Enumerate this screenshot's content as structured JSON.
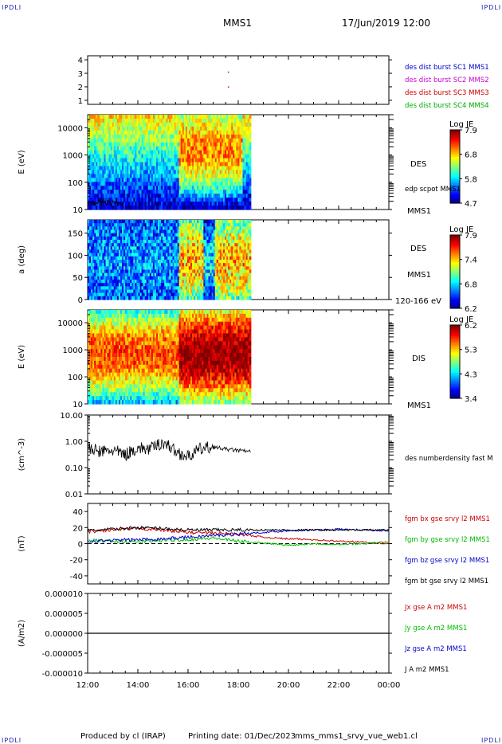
{
  "header": {
    "corner_label": "IPDLI",
    "spacecraft": "MMS1",
    "datetime": "17/Jun/2019 12:00"
  },
  "footer": {
    "produced_by": "Produced by cl (IRAP)",
    "printing_date": "Printing date: 01/Dec/2023",
    "filename": "mms_mms1_srvy_vue_web1.cl"
  },
  "time_axis": {
    "ticks": [
      "12:00",
      "14:00",
      "16:00",
      "18:00",
      "20:00",
      "22:00",
      "00:00"
    ],
    "range_hours": [
      12,
      24
    ]
  },
  "chart_data": [
    {
      "id": "burst",
      "type": "scatter",
      "ylim": [
        0.7,
        4.3
      ],
      "yticks": [
        "1",
        "2",
        "3",
        "4"
      ],
      "legend": [
        {
          "label": "des dist burst SC1 MMS1",
          "color": "#0000cc"
        },
        {
          "label": "des dist burst SC2 MMS2",
          "color": "#cc00cc"
        },
        {
          "label": "des dist burst SC3 MMS3",
          "color": "#cc0000"
        },
        {
          "label": "des dist burst SC4 MMS4",
          "color": "#00aa00"
        }
      ],
      "points": [
        {
          "x": 17.6,
          "y": 3.1,
          "series": 2
        },
        {
          "x": 17.6,
          "y": 2.0,
          "series": 2
        }
      ]
    },
    {
      "id": "des_energy",
      "type": "heatmap",
      "ylabel": "E (eV)",
      "scale": "log",
      "ylim": [
        10,
        30000
      ],
      "yticks": [
        "10",
        "100",
        "1000",
        "10000"
      ],
      "data_end_hour": 18.5,
      "right_labels": [
        "DES",
        "MMS1"
      ],
      "overlay_label": "edp scpot MMS1",
      "colorbar": {
        "title": "Log JE",
        "ticks": [
          "7.9",
          "6.8",
          "5.8",
          "4.7"
        ]
      }
    },
    {
      "id": "des_pitch",
      "type": "heatmap",
      "ylabel": "a (deg)",
      "ylim": [
        0,
        180
      ],
      "yticks": [
        "0",
        "50",
        "100",
        "150"
      ],
      "data_end_hour": 18.5,
      "right_labels": [
        "DES",
        "MMS1",
        "120-166 eV"
      ],
      "colorbar": {
        "title": "Log JE",
        "ticks": [
          "7.9",
          "7.4",
          "6.8",
          "6.2"
        ]
      }
    },
    {
      "id": "dis_energy",
      "type": "heatmap",
      "ylabel": "E (eV)",
      "scale": "log",
      "ylim": [
        10,
        30000
      ],
      "yticks": [
        "10",
        "100",
        "1000",
        "10000"
      ],
      "data_end_hour": 18.5,
      "right_labels": [
        "DIS",
        "MMS1"
      ],
      "colorbar": {
        "title": "Log JE",
        "ticks": [
          "6.2",
          "5.3",
          "4.3",
          "3.4"
        ]
      }
    },
    {
      "id": "density",
      "type": "line",
      "ylabel": "(cm^-3)",
      "scale": "log",
      "ylim": [
        0.01,
        10
      ],
      "yticks": [
        "0.01",
        "0.10",
        "1.00",
        "10.00"
      ],
      "legend": [
        {
          "label": "des numberdensity fast M",
          "color": "#000000"
        }
      ],
      "x": [
        12.0,
        12.5,
        13.0,
        13.5,
        14.0,
        14.5,
        15.0,
        15.5,
        16.0,
        16.5,
        17.0,
        17.5,
        18.0,
        18.5
      ],
      "values": [
        0.5,
        0.4,
        0.45,
        0.3,
        0.55,
        0.5,
        0.9,
        0.4,
        0.25,
        0.5,
        0.6,
        0.5,
        0.45,
        0.4
      ]
    },
    {
      "id": "bfield",
      "type": "line",
      "ylabel": "(nT)",
      "ylim": [
        -50,
        50
      ],
      "yticks": [
        "-40",
        "-20",
        "0",
        "20",
        "40"
      ],
      "x": [
        12,
        13,
        14,
        15,
        16,
        17,
        18,
        19,
        20,
        21,
        22,
        23,
        24
      ],
      "legend": [
        {
          "label": "fgm bx gse srvy l2 MMS1",
          "color": "#cc0000"
        },
        {
          "label": "fgm by gse srvy l2 MMS1",
          "color": "#00bb00"
        },
        {
          "label": "fgm bz gse srvy l2 MMS1",
          "color": "#0000cc"
        },
        {
          "label": "fgm bt gse srvy l2 MMS1",
          "color": "#000000"
        }
      ],
      "series": [
        {
          "values": [
            15,
            17,
            19,
            17,
            14,
            13,
            12,
            8,
            6,
            5,
            3,
            2,
            0
          ]
        },
        {
          "values": [
            4,
            3,
            2,
            4,
            5,
            7,
            3,
            1,
            -2,
            0,
            -1,
            0,
            2
          ]
        },
        {
          "values": [
            3,
            4,
            5,
            6,
            8,
            10,
            12,
            14,
            16,
            17,
            18,
            17,
            16
          ]
        },
        {
          "values": [
            16,
            18,
            20,
            19,
            17,
            17,
            17,
            17,
            17,
            17,
            17,
            17,
            17
          ]
        }
      ]
    },
    {
      "id": "current",
      "type": "line",
      "ylabel": "(A/m2)",
      "ylim": [
        -1e-05,
        1e-05
      ],
      "yticks": [
        "-0.000010",
        "-0.000005",
        "0.000000",
        "0.000005",
        "0.000010"
      ],
      "legend": [
        {
          "label": "Jx gse A m2 MMS1",
          "color": "#cc0000"
        },
        {
          "label": "Jy gse A m2 MMS1",
          "color": "#00bb00"
        },
        {
          "label": "Jz gse A m2 MMS1",
          "color": "#0000cc"
        },
        {
          "label": "J A m2 MMS1",
          "color": "#000000"
        }
      ],
      "x": [
        12,
        24
      ],
      "values": [
        0,
        0
      ]
    }
  ]
}
